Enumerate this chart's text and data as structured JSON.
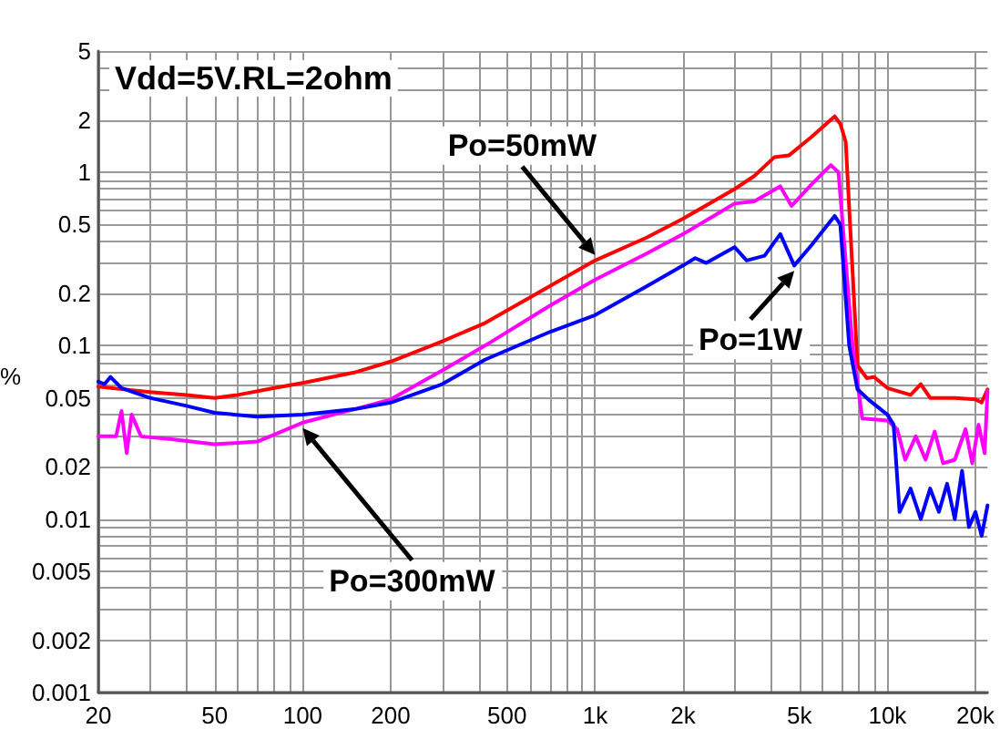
{
  "chart_data": {
    "type": "line",
    "ylabel": "%",
    "annotations": [
      "Vdd=5V.RL=2ohm"
    ],
    "log": "xy",
    "grid": true,
    "legend": false,
    "marker": "none",
    "line_style": "solid",
    "xlim": [
      20,
      22000
    ],
    "xticks": [
      20,
      {
        "value": 30,
        "label": null
      },
      {
        "value": 40,
        "label": null
      },
      50,
      {
        "value": 60,
        "label": null
      },
      {
        "value": 70,
        "label": null
      },
      {
        "value": 80,
        "label": null
      },
      {
        "value": 90,
        "label": null
      },
      100,
      200,
      {
        "value": 300,
        "label": null
      },
      {
        "value": 400,
        "label": null
      },
      500,
      {
        "value": 600,
        "label": null
      },
      {
        "value": 700,
        "label": null
      },
      {
        "value": 800,
        "label": null
      },
      {
        "value": 900,
        "label": null
      },
      {
        "value": 1000,
        "label": "1k"
      },
      {
        "value": 2000,
        "label": "2k"
      },
      {
        "value": 3000,
        "label": null
      },
      {
        "value": 4000,
        "label": null
      },
      {
        "value": 5000,
        "label": "5k"
      },
      {
        "value": 6000,
        "label": null
      },
      {
        "value": 7000,
        "label": null
      },
      {
        "value": 8000,
        "label": null
      },
      {
        "value": 9000,
        "label": null
      },
      {
        "value": 10000,
        "label": "10k"
      },
      {
        "value": 20000,
        "label": "20k"
      }
    ],
    "ylim": [
      0.001,
      5
    ],
    "yticks": [
      0.001,
      0.002,
      {
        "value": 0.003,
        "label": null
      },
      {
        "value": 0.004,
        "label": null
      },
      0.005,
      {
        "value": 0.006,
        "label": null
      },
      {
        "value": 0.007,
        "label": null
      },
      {
        "value": 0.008,
        "label": null
      },
      {
        "value": 0.009,
        "label": null
      },
      0.01,
      0.02,
      {
        "value": 0.03,
        "label": null
      },
      {
        "value": 0.04,
        "label": null
      },
      0.05,
      {
        "value": 0.06,
        "label": null
      },
      {
        "value": 0.07,
        "label": null
      },
      {
        "value": 0.08,
        "label": null
      },
      {
        "value": 0.09,
        "label": null
      },
      0.1,
      0.2,
      {
        "value": 0.3,
        "label": null
      },
      {
        "value": 0.4,
        "label": null
      },
      0.5,
      {
        "value": 0.6,
        "label": null
      },
      {
        "value": 0.7,
        "label": null
      },
      {
        "value": 0.8,
        "label": null
      },
      {
        "value": 0.9,
        "label": null
      },
      1,
      2,
      {
        "value": 3,
        "label": null
      },
      {
        "value": 4,
        "label": null
      },
      5
    ],
    "series": [
      {
        "name": "Po=50mW",
        "color": "#ff0000",
        "x": [
          20,
          30,
          40,
          50,
          60,
          80,
          100,
          150,
          200,
          300,
          420,
          600,
          1000,
          1500,
          2000,
          3000,
          3500,
          4100,
          4600,
          5500,
          6600,
          6900,
          7200,
          7900,
          8500,
          9000,
          10000,
          12000,
          13000,
          14000,
          17000,
          20000,
          21000,
          22000
        ],
        "values": [
          0.058,
          0.054,
          0.052,
          0.05,
          0.052,
          0.057,
          0.061,
          0.07,
          0.081,
          0.106,
          0.135,
          0.19,
          0.31,
          0.42,
          0.54,
          0.8,
          0.95,
          1.22,
          1.25,
          1.6,
          2.1,
          1.9,
          1.5,
          0.077,
          0.065,
          0.066,
          0.057,
          0.052,
          0.06,
          0.05,
          0.05,
          0.049,
          0.047,
          0.056
        ]
      },
      {
        "name": "Po=300mW",
        "color": "#ff00ff",
        "x": [
          20,
          23,
          24,
          25,
          26,
          28,
          35,
          50,
          70,
          100,
          150,
          200,
          300,
          420,
          700,
          1000,
          1500,
          2000,
          2500,
          3000,
          3500,
          4300,
          4700,
          5500,
          6400,
          6800,
          7600,
          8200,
          10000,
          10800,
          11500,
          12500,
          13500,
          14500,
          15500,
          17000,
          18500,
          19500,
          20500,
          21500,
          22000
        ],
        "values": [
          0.03,
          0.03,
          0.042,
          0.024,
          0.04,
          0.03,
          0.029,
          0.027,
          0.028,
          0.036,
          0.043,
          0.049,
          0.072,
          0.1,
          0.17,
          0.24,
          0.34,
          0.44,
          0.55,
          0.66,
          0.68,
          0.83,
          0.64,
          0.85,
          1.1,
          1.0,
          0.1,
          0.038,
          0.037,
          0.033,
          0.022,
          0.03,
          0.022,
          0.032,
          0.021,
          0.022,
          0.033,
          0.021,
          0.035,
          0.024,
          0.055
        ]
      },
      {
        "name": "Po=1W",
        "color": "#0000ff",
        "x": [
          20,
          21,
          22,
          24,
          30,
          40,
          50,
          70,
          100,
          150,
          200,
          300,
          420,
          700,
          1000,
          1500,
          2000,
          2200,
          2400,
          3000,
          3300,
          3800,
          4300,
          4800,
          5500,
          6600,
          6900,
          7400,
          7900,
          8600,
          10000,
          10500,
          11000,
          12000,
          13000,
          14000,
          15000,
          16000,
          17000,
          18000,
          19000,
          20000,
          21000,
          22000
        ],
        "values": [
          0.062,
          0.06,
          0.066,
          0.057,
          0.05,
          0.045,
          0.041,
          0.039,
          0.04,
          0.043,
          0.047,
          0.06,
          0.083,
          0.12,
          0.15,
          0.22,
          0.29,
          0.32,
          0.3,
          0.37,
          0.31,
          0.33,
          0.44,
          0.29,
          0.38,
          0.56,
          0.5,
          0.1,
          0.056,
          0.049,
          0.04,
          0.035,
          0.011,
          0.015,
          0.01,
          0.015,
          0.011,
          0.016,
          0.01,
          0.019,
          0.009,
          0.011,
          0.008,
          0.012
        ]
      }
    ]
  }
}
